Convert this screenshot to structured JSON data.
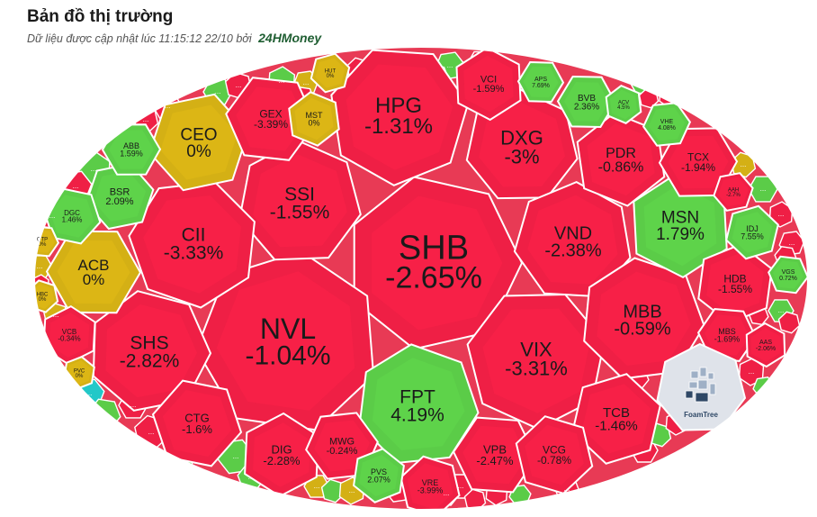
{
  "header": {
    "title": "Bản đồ thị trường",
    "subtitle_prefix": "Dữ liệu được cập nhật lúc 11:15:12 22/10 bởi",
    "brand": "24HMoney"
  },
  "colors": {
    "down": "#ef1f45",
    "up": "#5bcc48",
    "flat": "#d4b015",
    "ceiling": "#22c8c8",
    "watermark": "#dfe3ea"
  },
  "watermark": {
    "text": "FoamTree",
    "icon": "foamtree-logo-icon"
  },
  "chart_data": {
    "type": "treemap",
    "title": "Bản đồ thị trường",
    "unit": "%",
    "cells": [
      {
        "code": "SHB",
        "change": "-2.65%",
        "value": -2.65
      },
      {
        "code": "NVL",
        "change": "-1.04%",
        "value": -1.04
      },
      {
        "code": "HPG",
        "change": "-1.31%",
        "value": -1.31
      },
      {
        "code": "DXG",
        "change": "-3%",
        "value": -3
      },
      {
        "code": "VND",
        "change": "-2.38%",
        "value": -2.38
      },
      {
        "code": "VIX",
        "change": "-3.31%",
        "value": -3.31
      },
      {
        "code": "FPT",
        "change": "4.19%",
        "value": 4.19
      },
      {
        "code": "SSI",
        "change": "-1.55%",
        "value": -1.55
      },
      {
        "code": "CII",
        "change": "-3.33%",
        "value": -3.33
      },
      {
        "code": "SHS",
        "change": "-2.82%",
        "value": -2.82
      },
      {
        "code": "MBB",
        "change": "-0.59%",
        "value": -0.59
      },
      {
        "code": "MSN",
        "change": "1.79%",
        "value": 1.79
      },
      {
        "code": "CEO",
        "change": "0%",
        "value": 0
      },
      {
        "code": "ACB",
        "change": "0%",
        "value": 0
      },
      {
        "code": "PDR",
        "change": "-0.86%",
        "value": -0.86
      },
      {
        "code": "TCB",
        "change": "-1.46%",
        "value": -1.46
      },
      {
        "code": "VPB",
        "change": "-2.47%",
        "value": -2.47
      },
      {
        "code": "VCG",
        "change": "-0.78%",
        "value": -0.78
      },
      {
        "code": "HDB",
        "change": "-1.55%",
        "value": -1.55
      },
      {
        "code": "TCX",
        "change": "-1.94%",
        "value": -1.94
      },
      {
        "code": "CTG",
        "change": "-1.6%",
        "value": -1.6
      },
      {
        "code": "DIG",
        "change": "-2.28%",
        "value": -2.28
      },
      {
        "code": "MWG",
        "change": "-0.24%",
        "value": -0.24
      },
      {
        "code": "GEX",
        "change": "-3.39%",
        "value": -3.39
      },
      {
        "code": "VCI",
        "change": "-1.59%",
        "value": -1.59
      },
      {
        "code": "BSR",
        "change": "2.09%",
        "value": 2.09
      },
      {
        "code": "BVB",
        "change": "2.36%",
        "value": 2.36
      },
      {
        "code": "MST",
        "change": "0%",
        "value": 0
      },
      {
        "code": "IDJ",
        "change": "7.55%",
        "value": 7.55
      },
      {
        "code": "MBS",
        "change": "-1.69%",
        "value": -1.69
      },
      {
        "code": "VRE",
        "change": "-3.99%",
        "value": -3.99
      },
      {
        "code": "PVS",
        "change": "2.07%",
        "value": 2.07
      },
      {
        "code": "ABB",
        "change": "1.59%",
        "value": 1.59
      },
      {
        "code": "DGC",
        "change": "1.46%",
        "value": 1.46
      },
      {
        "code": "VCB",
        "change": "-0.34%",
        "value": -0.34
      },
      {
        "code": "VHE",
        "change": "4.08%",
        "value": 4.08
      },
      {
        "code": "VGS",
        "change": "0.72%",
        "value": 0.72
      },
      {
        "code": "AAS",
        "change": "-2.06%",
        "value": -2.06
      },
      {
        "code": "AAH",
        "change": "-2.7%",
        "value": -2.7
      },
      {
        "code": "APS",
        "change": "7.69%",
        "value": 7.69
      },
      {
        "code": "ACV",
        "change": "4.5%",
        "value": 4.5
      },
      {
        "code": "HUT",
        "change": "0%",
        "value": 0
      },
      {
        "code": "QTP",
        "change": "0%",
        "value": 0
      },
      {
        "code": "HBC",
        "change": "0%",
        "value": 0
      },
      {
        "code": "PVC",
        "change": "0%",
        "value": 0
      }
    ],
    "overflow_label": "..."
  }
}
